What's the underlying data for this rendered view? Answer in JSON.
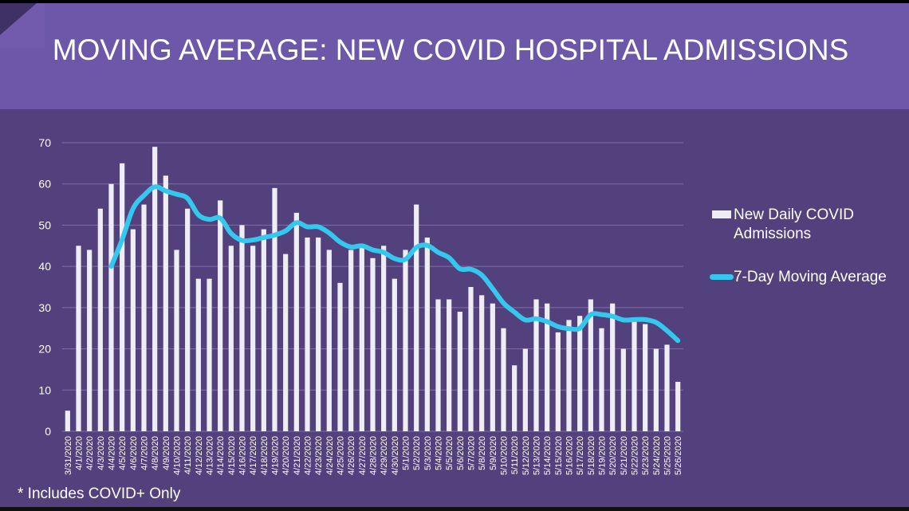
{
  "title": "MOVING AVERAGE: NEW COVID HOSPITAL ADMISSIONS",
  "footnote": "* Includes COVID+ Only",
  "colors": {
    "header_bg": "#6d57a8",
    "plot_bg": "#53417d",
    "bar": "#efedf4",
    "line": "#35c8ef",
    "gridline": "#7e70a6"
  },
  "chart_data": {
    "type": "bar",
    "categories": [
      "3/31/2020",
      "4/1/2020",
      "4/2/2020",
      "4/3/2020",
      "4/4/2020",
      "4/5/2020",
      "4/6/2020",
      "4/7/2020",
      "4/8/2020",
      "4/9/2020",
      "4/10/2020",
      "4/11/2020",
      "4/12/2020",
      "4/13/2020",
      "4/14/2020",
      "4/15/2020",
      "4/16/2020",
      "4/17/2020",
      "4/18/2020",
      "4/19/2020",
      "4/20/2020",
      "4/21/2020",
      "4/22/2020",
      "4/23/2020",
      "4/24/2020",
      "4/25/2020",
      "4/26/2020",
      "4/27/2020",
      "4/28/2020",
      "4/29/2020",
      "4/30/2020",
      "5/1/2020",
      "5/2/2020",
      "5/3/2020",
      "5/4/2020",
      "5/5/2020",
      "5/6/2020",
      "5/7/2020",
      "5/8/2020",
      "5/9/2020",
      "5/10/2020",
      "5/11/2020",
      "5/12/2020",
      "5/13/2020",
      "5/14/2020",
      "5/15/2020",
      "5/16/2020",
      "5/17/2020",
      "5/18/2020",
      "5/19/2020",
      "5/20/2020",
      "5/21/2020",
      "5/22/2020",
      "5/23/2020",
      "5/24/2020",
      "5/25/2020",
      "5/26/2020"
    ],
    "series": [
      {
        "name": "New Daily COVID Admissions",
        "kind": "bar",
        "values": [
          5,
          45,
          44,
          54,
          60,
          65,
          49,
          55,
          69,
          62,
          44,
          54,
          37,
          37,
          56,
          45,
          50,
          45,
          49,
          59,
          43,
          53,
          47,
          47,
          44,
          36,
          44,
          45,
          42,
          45,
          37,
          44,
          55,
          47,
          32,
          32,
          29,
          35,
          33,
          31,
          25,
          16,
          20,
          32,
          31,
          24,
          27,
          28,
          32,
          25,
          31,
          20,
          27,
          26,
          20,
          21,
          12
        ]
      },
      {
        "name": "7-Day Moving Average",
        "kind": "line",
        "values": [
          null,
          null,
          null,
          null,
          40,
          46.5,
          54,
          57.2,
          59.3,
          58.3,
          57.5,
          56.5,
          52.5,
          51.4,
          51.7,
          48,
          46.3,
          46.4,
          47,
          47.6,
          48.6,
          50.6,
          49.6,
          49.6,
          48.1,
          45.9,
          44.7,
          45,
          44,
          43.4,
          41.9,
          41.7,
          44.6,
          45.1,
          43.4,
          42.1,
          39.4,
          39.3,
          37.9,
          34.6,
          31.1,
          28.9,
          27,
          27.3,
          26.6,
          25.4,
          24.9,
          25,
          28.3,
          28.3,
          27.9,
          27,
          27.1,
          27.1,
          26.4,
          24.4,
          22
        ]
      }
    ],
    "ylim": [
      0,
      70
    ],
    "yticks": [
      0,
      10,
      20,
      30,
      40,
      50,
      60,
      70
    ],
    "grid": true,
    "legend_position": "right"
  }
}
